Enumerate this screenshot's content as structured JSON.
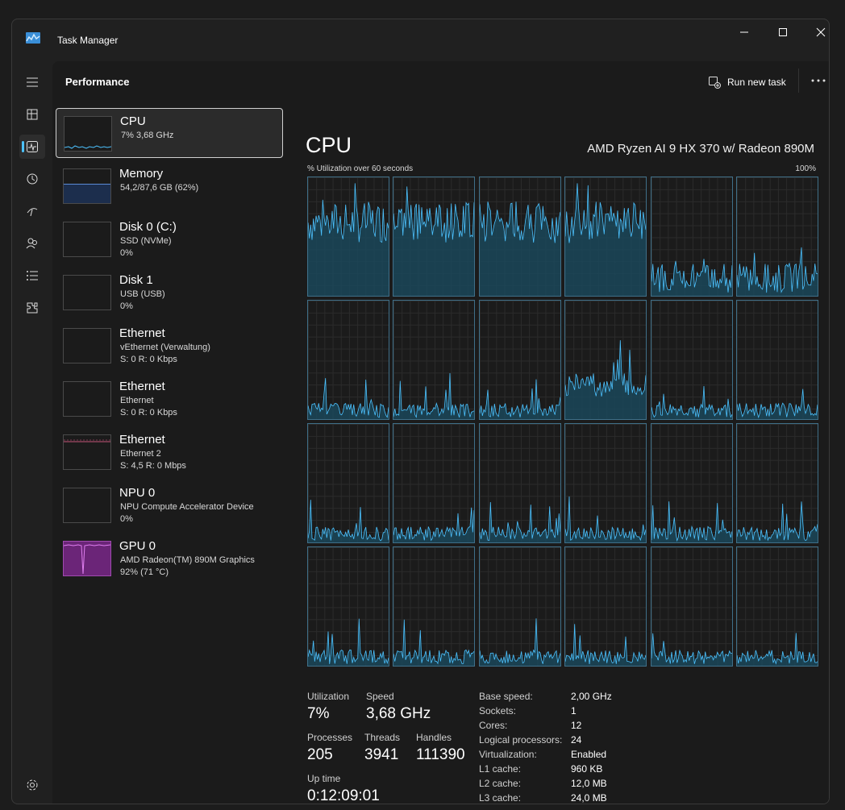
{
  "window": {
    "title": "Task Manager",
    "controls": [
      "minimize",
      "maximize",
      "close"
    ]
  },
  "nav": {
    "items": [
      {
        "name": "hamburger-menu-icon"
      },
      {
        "name": "processes-icon"
      },
      {
        "name": "performance-icon",
        "active": true
      },
      {
        "name": "app-history-icon"
      },
      {
        "name": "startup-apps-icon"
      },
      {
        "name": "users-icon"
      },
      {
        "name": "details-icon"
      },
      {
        "name": "services-icon"
      }
    ],
    "settings": "settings-icon"
  },
  "header": {
    "title": "Performance",
    "run_new_task": "Run new task",
    "more": "more-options-icon"
  },
  "devices": [
    {
      "name": "CPU",
      "sub": "7% 3,68 GHz",
      "sub2": "",
      "selected": true
    },
    {
      "name": "Memory",
      "sub": "54,2/87,6 GB (62%)",
      "sub2": ""
    },
    {
      "name": "Disk 0 (C:)",
      "sub": "SSD (NVMe)",
      "sub2": "0%"
    },
    {
      "name": "Disk 1",
      "sub": "USB (USB)",
      "sub2": "0%"
    },
    {
      "name": "Ethernet",
      "sub": "vEthernet (Verwaltung)",
      "sub2": "S: 0 R: 0 Kbps"
    },
    {
      "name": "Ethernet",
      "sub": "Ethernet",
      "sub2": "S: 0 R: 0 Kbps"
    },
    {
      "name": "Ethernet",
      "sub": "Ethernet 2",
      "sub2": "S: 4,5 R: 0 Mbps"
    },
    {
      "name": "NPU 0",
      "sub": "NPU Compute Accelerator Device",
      "sub2": "0%"
    },
    {
      "name": "GPU 0",
      "sub": "AMD Radeon(TM) 890M Graphics",
      "sub2": "92% (71 °C)"
    }
  ],
  "cpu": {
    "title": "CPU",
    "model": "AMD Ryzen AI 9 HX 370 w/ Radeon 890M",
    "graph_caption": "% Utilization over 60 seconds",
    "graph_max": "100%",
    "logical_processor_graphs": 24
  },
  "stats": {
    "utilization_label": "Utilization",
    "utilization": "7%",
    "speed_label": "Speed",
    "speed": "3,68 GHz",
    "processes_label": "Processes",
    "processes": "205",
    "threads_label": "Threads",
    "threads": "3941",
    "handles_label": "Handles",
    "handles": "111390",
    "uptime_label": "Up time",
    "uptime": "0:12:09:01"
  },
  "specs": [
    {
      "label": "Base speed:",
      "value": "2,00 GHz"
    },
    {
      "label": "Sockets:",
      "value": "1"
    },
    {
      "label": "Cores:",
      "value": "12"
    },
    {
      "label": "Logical processors:",
      "value": "24"
    },
    {
      "label": "Virtualization:",
      "value": "Enabled"
    },
    {
      "label": "L1 cache:",
      "value": "960 KB"
    },
    {
      "label": "L2 cache:",
      "value": "12,0 MB"
    },
    {
      "label": "L3 cache:",
      "value": "24,0 MB"
    }
  ],
  "colors": {
    "cpu_line": "#4cc2ff",
    "cpu_fill": "#1a4a5e",
    "memory_fill": "#2a3f66",
    "ethernet2_line": "#c5557a",
    "gpu_fill": "#7a2a8a",
    "accent": "#4cc2ff"
  }
}
